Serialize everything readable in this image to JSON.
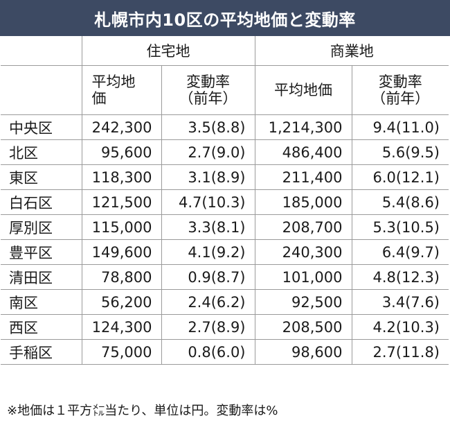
{
  "title": "札幌市内10区の平均地価と変動率",
  "groups": {
    "residential": "住宅地",
    "commercial": "商業地"
  },
  "subheaders": {
    "res_avg_line1": "平均地",
    "res_avg_line2": "価",
    "res_rate_line1": "変動率",
    "res_rate_line2": "（前年）",
    "com_avg": "平均地価",
    "com_rate_line1": "変動率",
    "com_rate_line2": "（前年）"
  },
  "rows": [
    {
      "ward": "中央区",
      "res_price": "242,300",
      "res_rate": "3.5(8.8)",
      "com_price": "1,214,300",
      "com_rate": "9.4(11.0)"
    },
    {
      "ward": "北区",
      "res_price": "95,600",
      "res_rate": "2.7(9.0)",
      "com_price": "486,400",
      "com_rate": "5.6(9.5)"
    },
    {
      "ward": "東区",
      "res_price": "118,300",
      "res_rate": "3.1(8.9)",
      "com_price": "211,400",
      "com_rate": "6.0(12.1)"
    },
    {
      "ward": "白石区",
      "res_price": "121,500",
      "res_rate": "4.7(10.3)",
      "com_price": "185,000",
      "com_rate": "5.4(8.6)"
    },
    {
      "ward": "厚別区",
      "res_price": "115,000",
      "res_rate": "3.3(8.1)",
      "com_price": "208,700",
      "com_rate": "5.3(10.5)"
    },
    {
      "ward": "豊平区",
      "res_price": "149,600",
      "res_rate": "4.1(9.2)",
      "com_price": "240,300",
      "com_rate": "6.4(9.7)"
    },
    {
      "ward": "清田区",
      "res_price": "78,800",
      "res_rate": "0.9(8.7)",
      "com_price": "101,000",
      "com_rate": "4.8(12.3)"
    },
    {
      "ward": "南区",
      "res_price": "56,200",
      "res_rate": "2.4(6.2)",
      "com_price": "92,500",
      "com_rate": "3.4(7.6)"
    },
    {
      "ward": "西区",
      "res_price": "124,300",
      "res_rate": "2.7(8.9)",
      "com_price": "208,500",
      "com_rate": "4.2(10.3)"
    },
    {
      "ward": "手稲区",
      "res_price": "75,000",
      "res_rate": "0.8(6.0)",
      "com_price": "98,600",
      "com_rate": "2.7(11.8)"
    }
  ],
  "footnote": "※地価は１平方㍍当たり、単位は円。変動率は%",
  "colors": {
    "title_bg": "#3d4a63",
    "title_text": "#ffffff",
    "border": "#9a9a9a"
  }
}
